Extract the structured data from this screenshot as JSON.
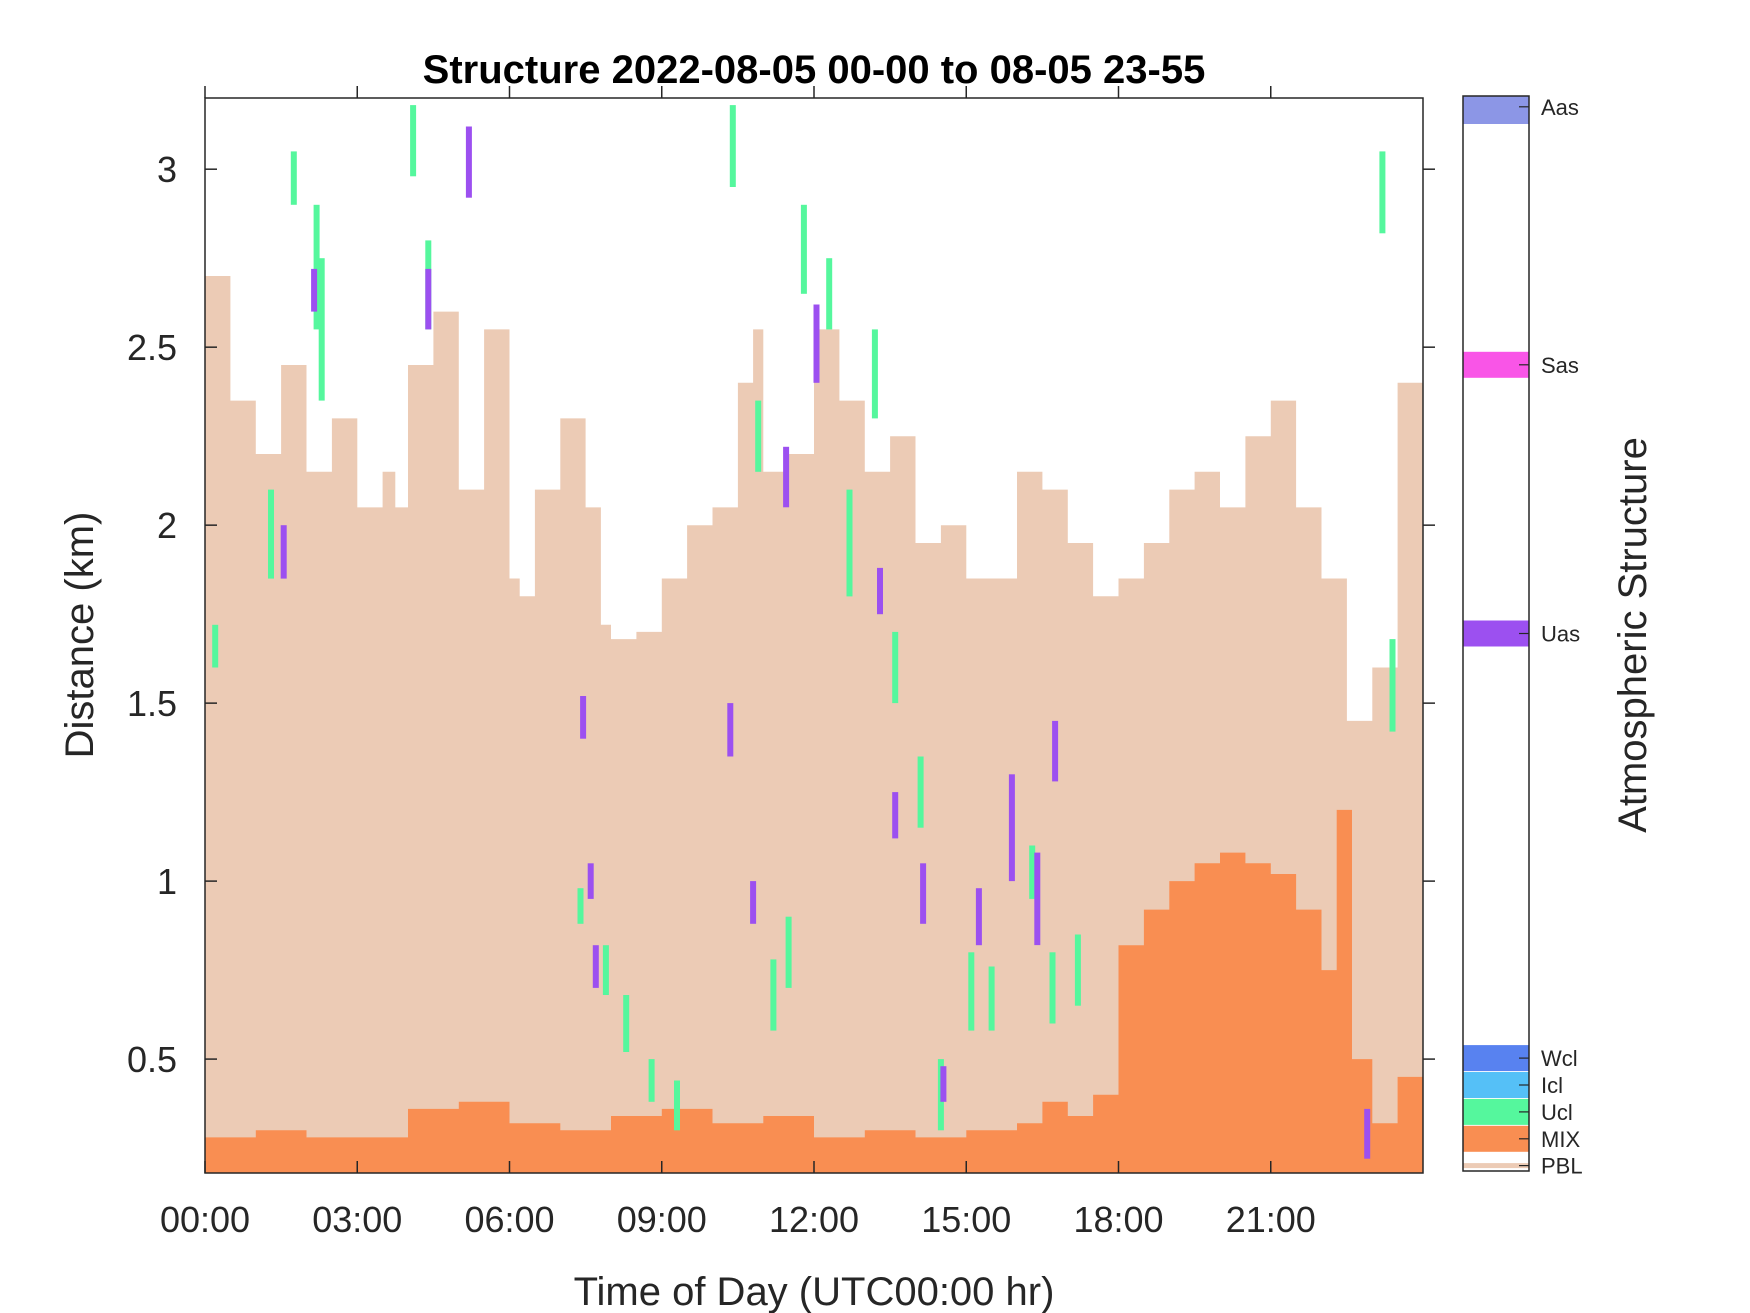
{
  "chart_data": {
    "type": "heatmap",
    "title": "Structure 2022-08-05 00-00 to 08-05 23-55",
    "xlabel": "Time of Day (UTC00:00 hr)",
    "ylabel": "Distance (km)",
    "colorbar_label": "Atmospheric Structure",
    "xlim_hours": [
      0,
      24
    ],
    "ylim_km": [
      0.18,
      3.2
    ],
    "x_ticks": [
      {
        "label": "00:00",
        "hour": 0
      },
      {
        "label": "03:00",
        "hour": 3
      },
      {
        "label": "06:00",
        "hour": 6
      },
      {
        "label": "09:00",
        "hour": 9
      },
      {
        "label": "12:00",
        "hour": 12
      },
      {
        "label": "15:00",
        "hour": 15
      },
      {
        "label": "18:00",
        "hour": 18
      },
      {
        "label": "21:00",
        "hour": 21
      }
    ],
    "y_ticks": [
      {
        "label": "0.5",
        "km": 0.5
      },
      {
        "label": "1",
        "km": 1
      },
      {
        "label": "1.5",
        "km": 1.5
      },
      {
        "label": "2",
        "km": 2
      },
      {
        "label": "2.5",
        "km": 2.5
      },
      {
        "label": "3",
        "km": 3
      }
    ],
    "categories": [
      {
        "name": "PBL",
        "color": "#eccbb5"
      },
      {
        "name": "MIX",
        "color": "#f98e52"
      },
      {
        "name": "Ucl",
        "color": "#55f79d"
      },
      {
        "name": "Icl",
        "color": "#55c0f7"
      },
      {
        "name": "Wcl",
        "color": "#5882f0"
      },
      {
        "name": "Uas",
        "color": "#9c50f0"
      },
      {
        "name": "Sas",
        "color": "#f955e7"
      },
      {
        "name": "Aas",
        "color": "#8c96e6"
      }
    ],
    "series": [
      {
        "name": "PBL",
        "x_hours": [
          0,
          0.5,
          1,
          1.5,
          2,
          2.5,
          3,
          3.5,
          3.75,
          4,
          4.5,
          5,
          5.5,
          6,
          6.2,
          6.5,
          7,
          7.5,
          7.8,
          8,
          8.5,
          9,
          9.5,
          10,
          10.5,
          10.8,
          11,
          11.5,
          12,
          12.5,
          13,
          13.5,
          14,
          14.5,
          15,
          15.5,
          16,
          16.5,
          17,
          17.5,
          18,
          18.5,
          19,
          19.5,
          20,
          20.5,
          21,
          21.5,
          22,
          22.5,
          23,
          23.5,
          24
        ],
        "top_km": [
          2.7,
          2.35,
          2.2,
          2.45,
          2.15,
          2.3,
          2.05,
          2.15,
          2.05,
          2.45,
          2.6,
          2.1,
          2.55,
          1.85,
          1.8,
          2.1,
          2.3,
          2.05,
          1.72,
          1.68,
          1.7,
          1.85,
          2.0,
          2.05,
          2.4,
          2.55,
          2.15,
          2.2,
          2.55,
          2.35,
          2.15,
          2.25,
          1.95,
          2.0,
          1.85,
          1.85,
          2.15,
          2.1,
          1.95,
          1.8,
          1.85,
          1.95,
          2.1,
          2.15,
          2.05,
          2.25,
          2.35,
          2.05,
          1.85,
          1.45,
          1.6,
          2.4,
          1.5
        ]
      },
      {
        "name": "MIX",
        "x_hours": [
          0,
          1,
          2,
          3,
          4,
          5,
          6,
          7,
          8,
          9,
          10,
          11,
          12,
          13,
          14,
          15,
          16,
          16.5,
          17,
          17.5,
          18,
          18.5,
          19,
          19.5,
          20,
          20.5,
          21,
          21.5,
          22,
          22.3,
          22.6,
          23,
          23.5,
          24
        ],
        "top_km": [
          0.28,
          0.3,
          0.28,
          0.28,
          0.36,
          0.38,
          0.32,
          0.3,
          0.34,
          0.36,
          0.32,
          0.34,
          0.28,
          0.3,
          0.28,
          0.3,
          0.32,
          0.38,
          0.34,
          0.4,
          0.82,
          0.92,
          1.0,
          1.05,
          1.08,
          1.05,
          1.02,
          0.92,
          0.75,
          1.2,
          0.5,
          0.32,
          0.45,
          0.5
        ]
      },
      {
        "name": "Ucl",
        "x_hours": [
          0.2,
          1.3,
          1.75,
          2.2,
          2.3,
          4.1,
          4.4,
          7.4,
          7.9,
          8.3,
          8.8,
          9.3,
          10.4,
          10.9,
          11.2,
          11.5,
          11.8,
          12.3,
          12.7,
          13.2,
          13.6,
          14.1,
          14.5,
          15.1,
          15.5,
          16.3,
          16.7,
          17.2,
          23.2,
          23.4
        ],
        "bottom_km": [
          1.6,
          1.85,
          2.9,
          2.55,
          2.35,
          2.98,
          2.55,
          0.88,
          0.68,
          0.52,
          0.38,
          0.3,
          2.95,
          2.15,
          0.58,
          0.7,
          2.65,
          2.55,
          1.8,
          2.3,
          1.5,
          1.15,
          0.3,
          0.58,
          0.58,
          0.95,
          0.6,
          0.65,
          2.82,
          1.42
        ],
        "top_km": [
          1.72,
          2.1,
          3.05,
          2.9,
          2.75,
          3.18,
          2.8,
          0.98,
          0.82,
          0.68,
          0.5,
          0.44,
          3.18,
          2.35,
          0.78,
          0.9,
          2.9,
          2.75,
          2.1,
          2.55,
          1.7,
          1.35,
          0.5,
          0.8,
          0.76,
          1.1,
          0.8,
          0.85,
          3.05,
          1.68
        ]
      },
      {
        "name": "Uas",
        "x_hours": [
          1.55,
          2.15,
          4.4,
          5.2,
          7.45,
          7.6,
          7.7,
          10.35,
          10.8,
          11.45,
          12.05,
          13.3,
          13.6,
          14.15,
          14.55,
          15.25,
          15.9,
          16.4,
          16.75,
          22.9
        ],
        "bottom_km": [
          1.85,
          2.6,
          2.55,
          2.92,
          1.4,
          0.95,
          0.7,
          1.35,
          0.88,
          2.05,
          2.4,
          1.75,
          1.12,
          0.88,
          0.38,
          0.82,
          1.0,
          0.82,
          1.28,
          0.22
        ],
        "top_km": [
          2.0,
          2.72,
          2.72,
          3.12,
          1.52,
          1.05,
          0.82,
          1.5,
          1.0,
          2.22,
          2.62,
          1.88,
          1.25,
          1.05,
          0.48,
          0.98,
          1.3,
          1.08,
          1.45,
          0.36
        ]
      }
    ]
  }
}
